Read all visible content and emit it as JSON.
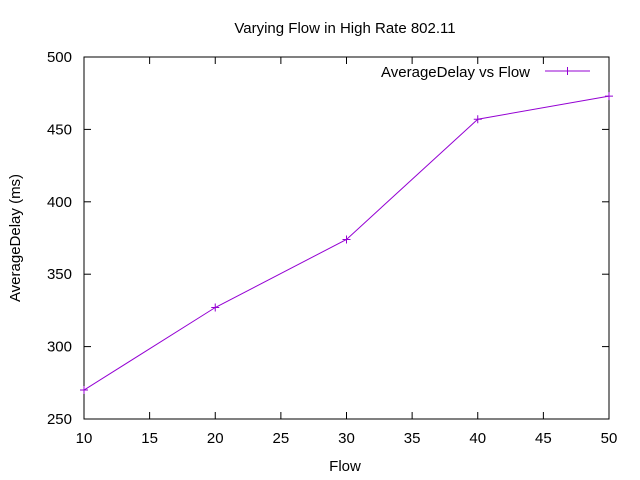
{
  "chart_data": {
    "type": "line",
    "title": "Varying Flow in High Rate 802.11",
    "xlabel": "Flow",
    "ylabel": "AverageDelay (ms)",
    "xlim": [
      10,
      50
    ],
    "ylim": [
      250,
      500
    ],
    "xticks": [
      10,
      15,
      20,
      25,
      30,
      35,
      40,
      45,
      50
    ],
    "yticks": [
      250,
      300,
      350,
      400,
      450,
      500
    ],
    "grid": false,
    "legend_position": "top-right",
    "series": [
      {
        "name": "AverageDelay vs Flow",
        "color": "#9400d3",
        "marker": "plus",
        "x": [
          10,
          20,
          30,
          40,
          50
        ],
        "y": [
          270,
          327,
          374,
          457,
          473
        ]
      }
    ]
  }
}
